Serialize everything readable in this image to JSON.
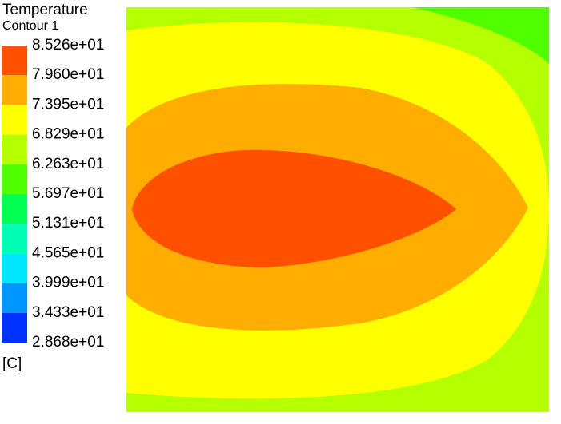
{
  "chart_data": {
    "type": "contour",
    "title": "Temperature",
    "subtitle": "Contour 1",
    "unit": "[C]",
    "levels": [
      {
        "value": 85.26,
        "label": "8.526e+01"
      },
      {
        "value": 79.6,
        "label": "7.960e+01"
      },
      {
        "value": 73.95,
        "label": "7.395e+01"
      },
      {
        "value": 68.29,
        "label": "6.829e+01"
      },
      {
        "value": 62.63,
        "label": "6.263e+01"
      },
      {
        "value": 56.97,
        "label": "5.697e+01"
      },
      {
        "value": 51.31,
        "label": "5.131e+01"
      },
      {
        "value": 45.65,
        "label": "4.565e+01"
      },
      {
        "value": 39.99,
        "label": "3.999e+01"
      },
      {
        "value": 34.33,
        "label": "3.433e+01"
      },
      {
        "value": 28.68,
        "label": "2.868e+01"
      }
    ],
    "colors": [
      "#ff5000",
      "#ffad00",
      "#ffff00",
      "#b4ff00",
      "#50ff00",
      "#00ff50",
      "#00ffb4",
      "#00e6ff",
      "#0096ff",
      "#0032ff"
    ]
  }
}
